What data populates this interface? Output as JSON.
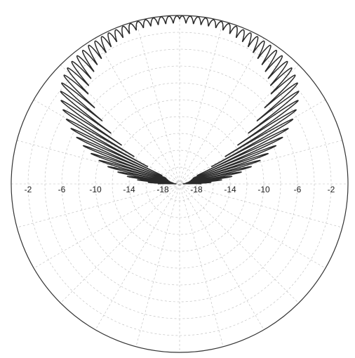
{
  "chart_data": {
    "type": "polar-line",
    "title": "",
    "radial_unit": "",
    "radial_range_db": [
      -20,
      0
    ],
    "radial_tick_labels": [
      "-2",
      "-6",
      "-10",
      "-14",
      "-18"
    ],
    "radial_tick_values": [
      -2,
      -6,
      -10,
      -14,
      -18
    ],
    "radial_grid_step_db": 2,
    "angular_grid_step_deg": 15,
    "grid": true,
    "grid_style": "dashed",
    "legend": "none",
    "colors": {
      "curve": "#2a2a2a",
      "outer_circle": "#333333",
      "grid": "#bbbbbb",
      "tick_text": "#222222"
    },
    "series": [
      {
        "lobe_peaks": [
          {
            "angle_deg": 0,
            "gain_db": -17.5
          },
          {
            "angle_deg": 2.7,
            "gain_db": -16.3
          },
          {
            "angle_deg": 5.4,
            "gain_db": -15.0
          },
          {
            "angle_deg": 8.2,
            "gain_db": -13.7
          },
          {
            "angle_deg": 10.9,
            "gain_db": -12.5
          },
          {
            "angle_deg": 13.6,
            "gain_db": -11.2
          },
          {
            "angle_deg": 16.3,
            "gain_db": -10.0
          },
          {
            "angle_deg": 19.1,
            "gain_db": -8.8
          },
          {
            "angle_deg": 21.8,
            "gain_db": -7.6
          },
          {
            "angle_deg": 24.5,
            "gain_db": -6.5
          },
          {
            "angle_deg": 27.3,
            "gain_db": -5.4
          },
          {
            "angle_deg": 30.0,
            "gain_db": -4.4
          },
          {
            "angle_deg": 32.7,
            "gain_db": -3.5
          },
          {
            "angle_deg": 35.4,
            "gain_db": -2.7
          },
          {
            "angle_deg": 38.2,
            "gain_db": -2.0
          },
          {
            "angle_deg": 40.9,
            "gain_db": -1.5
          },
          {
            "angle_deg": 43.6,
            "gain_db": -1.1
          },
          {
            "angle_deg": 46.4,
            "gain_db": -0.8
          },
          {
            "angle_deg": 49.1,
            "gain_db": -0.6
          },
          {
            "angle_deg": 51.8,
            "gain_db": -0.5
          },
          {
            "angle_deg": 54.5,
            "gain_db": -0.4
          },
          {
            "angle_deg": 57.3,
            "gain_db": -0.3
          },
          {
            "angle_deg": 60.0,
            "gain_db": -0.3
          },
          {
            "angle_deg": 62.7,
            "gain_db": -0.2
          },
          {
            "angle_deg": 65.5,
            "gain_db": -0.2
          },
          {
            "angle_deg": 68.2,
            "gain_db": -0.2
          },
          {
            "angle_deg": 70.9,
            "gain_db": -0.1
          },
          {
            "angle_deg": 73.6,
            "gain_db": -0.1
          },
          {
            "angle_deg": 76.4,
            "gain_db": -0.1
          },
          {
            "angle_deg": 79.1,
            "gain_db": -0.1
          },
          {
            "angle_deg": 81.8,
            "gain_db": -0.05
          },
          {
            "angle_deg": 84.5,
            "gain_db": -0.05
          },
          {
            "angle_deg": 87.3,
            "gain_db": -0.05
          },
          {
            "angle_deg": 90.0,
            "gain_db": -0.05
          }
        ],
        "lobe_nulls_db": [
          {
            "angle_deg": 0,
            "gain_db": -20
          },
          {
            "angle_deg": 25,
            "gain_db": -20
          },
          {
            "angle_deg": 35,
            "gain_db": -12
          },
          {
            "angle_deg": 45,
            "gain_db": -5
          },
          {
            "angle_deg": 55,
            "gain_db": -3.2
          },
          {
            "angle_deg": 65,
            "gain_db": -1.8
          },
          {
            "angle_deg": 75,
            "gain_db": -1.1
          },
          {
            "angle_deg": 90,
            "gain_db": -1.0
          }
        ],
        "symmetric_about_vertical": true
      }
    ]
  }
}
